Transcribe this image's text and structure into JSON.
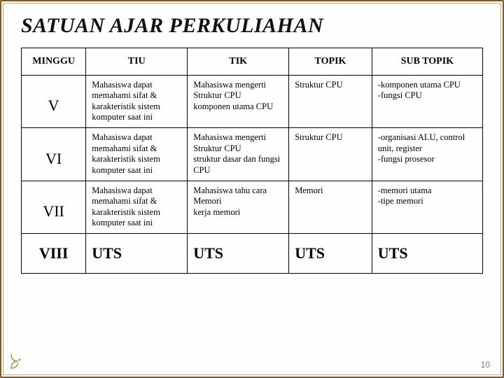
{
  "title": "SATUAN AJAR PERKULIAHAN",
  "page_number": "10",
  "colors": {
    "outer_border": "#7a5a2a",
    "inner_border": "#c9a86a",
    "table_border": "#000000",
    "text": "#000000",
    "page_num": "#7a7a7a",
    "deco": "#b08a3e"
  },
  "table": {
    "type": "table",
    "columns": [
      "MINGGU",
      "TIU",
      "TIK",
      "TOPIK",
      "SUB TOPIK"
    ],
    "column_widths_pct": [
      14,
      22,
      22,
      18,
      24
    ],
    "rows": [
      {
        "week": "V",
        "tiu": "Mahasiswa dapat memahami sifat & karakteristik sistem komputer saat ini",
        "tik": "Mahasiswa mengerti Struktur CPU\nkomponen utama CPU",
        "topik": "Struktur CPU",
        "sub": "-komponen utama CPU\n-fungsi CPU"
      },
      {
        "week": "VI",
        "tiu": "Mahasiswa dapat memahami sifat & karakteristik sistem komputer saat ini",
        "tik": "Mahasiswa mengerti Struktur CPU\nstruktur dasar dan fungsi CPU",
        "topik": "Struktur CPU",
        "sub": "-organisasi ALU, control\nunit, register\n-fungsi prosesor"
      },
      {
        "week": "VII",
        "tiu": "Mahasiswa dapat memahami sifat & karakteristik sistem komputer saat ini",
        "tik": "Mahasiswa tahu cara Memori\nkerja memori",
        "topik": "Memori",
        "sub": "-memori utama\n-tipe memori"
      },
      {
        "week": "VIII",
        "tiu": "UTS",
        "tik": "UTS",
        "topik": "UTS",
        "sub": "UTS",
        "uts": true
      }
    ]
  }
}
